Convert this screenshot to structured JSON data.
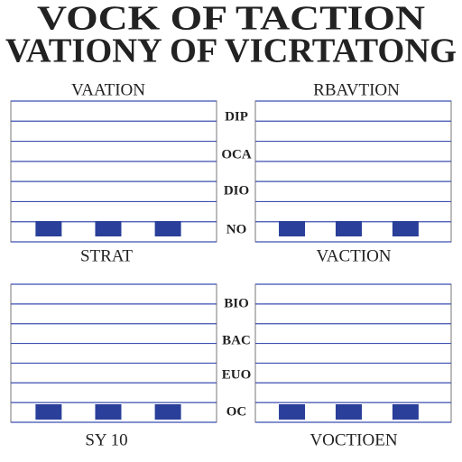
{
  "title": {
    "line1": "VOCK OF TACTION",
    "line2": "VATIONY OF VICRTATONG"
  },
  "top_headings": [
    "VAATION",
    "RBAVTION"
  ],
  "middle_labels": [
    "STRAT",
    "VACTION"
  ],
  "bottom_labels": [
    "SY 10",
    "VOCTIOEN"
  ],
  "row_labels": {
    "top": [
      "DIP",
      "OCA",
      "DIO",
      "NO"
    ],
    "bottom": [
      "BIO",
      "BAC",
      "EUO",
      "OC"
    ]
  }
}
